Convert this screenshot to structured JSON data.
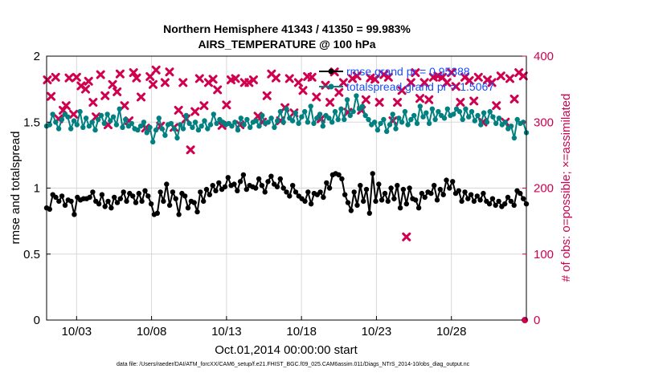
{
  "chart_data": {
    "type": "line",
    "title_line1": "Northern Hemisphere 41343 / 41350 = 99.983%",
    "title_line2": "AIRS_TEMPERATURE @ 100 hPa",
    "xlabel": "Oct.01,2014 00:00:00 start",
    "ylabel_left": "rmse and totalspread",
    "ylabel_right": "# of obs: o=possible; ×=assimilated",
    "x_ticks": [
      "10/03",
      "10/08",
      "10/13",
      "10/18",
      "10/23",
      "10/28"
    ],
    "x_tick_days": [
      3,
      8,
      13,
      18,
      23,
      28
    ],
    "y_left_ticks": [
      "0",
      "0.5",
      "1",
      "1.5",
      "2"
    ],
    "y_left_range": [
      0,
      2
    ],
    "y_right_ticks": [
      "0",
      "100",
      "200",
      "300",
      "400"
    ],
    "y_right_range": [
      0,
      400
    ],
    "x_range_days": [
      1,
      33
    ],
    "grid": true,
    "legend_position": "top-right",
    "colors": {
      "rmse": "#000000",
      "spread": "#008080",
      "obs": "#d0004f"
    },
    "series": [
      {
        "name": "rmse grand pr = 0.95388",
        "color": "#000000",
        "values": [
          0.85,
          0.84,
          0.95,
          0.93,
          0.9,
          0.94,
          0.87,
          0.91,
          0.9,
          0.8,
          0.93,
          0.91,
          0.92,
          0.92,
          0.93,
          0.97,
          0.9,
          0.88,
          0.95,
          0.86,
          0.9,
          0.85,
          0.93,
          0.89,
          0.92,
          0.97,
          0.9,
          0.96,
          0.94,
          0.89,
          0.96,
          0.9,
          0.98,
          0.94,
          0.88,
          0.8,
          0.81,
          0.97,
          0.9,
          1.03,
          0.87,
          0.97,
          0.92,
          0.8,
          0.96,
          0.94,
          0.85,
          0.9,
          0.89,
          0.82,
          0.97,
          0.9,
          0.99,
          0.95,
          1.02,
          0.98,
          1.04,
          0.99,
          1.01,
          1.08,
          1.02,
          1.03,
          0.98,
          1.05,
          1.1,
          0.99,
          1.02,
          1.01,
          1.0,
          1.07,
          1.02,
          0.97,
          1.05,
          1.09,
          1.03,
          1.01,
          1.07,
          1.0,
          0.97,
          0.94,
          1.02,
          0.97,
          0.94,
          0.92,
          0.9,
          0.97,
          0.88,
          0.96,
          0.95,
          0.97,
          0.93,
          1.04,
          1.0,
          1.1,
          1.11,
          1.1,
          1.07,
          0.95,
          0.89,
          0.83,
          0.97,
          0.87,
          1.02,
          0.9,
          0.99,
          0.81,
          1.11,
          0.9,
          1.03,
          0.91,
          0.96,
          0.9,
          1.0,
          0.92,
          1.02,
          0.85,
          0.99,
          0.88,
          1.0,
          0.92,
          0.91,
          0.85,
          0.96,
          0.93,
          0.97,
          0.96,
          1.02,
          0.91,
          0.99,
          0.95,
          1.06,
          1.0,
          1.05,
          0.96,
          0.98,
          0.9,
          0.97,
          0.92,
          0.95,
          0.9,
          0.94,
          0.91,
          0.96,
          0.9,
          0.88,
          0.92,
          0.87,
          0.9,
          0.86,
          0.88,
          0.93,
          0.9,
          0.87,
          0.98,
          0.96,
          0.92,
          0.88
        ]
      },
      {
        "name": "totalspread grand pr = 1.5067",
        "color": "#008080",
        "values": [
          1.47,
          1.48,
          1.56,
          1.5,
          1.45,
          1.52,
          1.56,
          1.54,
          1.45,
          1.51,
          1.48,
          1.58,
          1.46,
          1.53,
          1.47,
          1.5,
          1.44,
          1.52,
          1.55,
          1.49,
          1.56,
          1.51,
          1.54,
          1.48,
          1.6,
          1.46,
          1.52,
          1.47,
          1.49,
          1.45,
          1.44,
          1.47,
          1.5,
          1.42,
          1.46,
          1.35,
          1.44,
          1.53,
          1.45,
          1.4,
          1.48,
          1.49,
          1.45,
          1.38,
          1.48,
          1.45,
          1.55,
          1.49,
          1.46,
          1.5,
          1.44,
          1.47,
          1.51,
          1.45,
          1.48,
          1.56,
          1.49,
          1.52,
          1.5,
          1.48,
          1.49,
          1.47,
          1.5,
          1.44,
          1.53,
          1.48,
          1.52,
          1.46,
          1.5,
          1.51,
          1.47,
          1.55,
          1.49,
          1.5,
          1.53,
          1.46,
          1.51,
          1.58,
          1.5,
          1.6,
          1.53,
          1.51,
          1.57,
          1.49,
          1.54,
          1.58,
          1.5,
          1.62,
          1.49,
          1.53,
          1.56,
          1.47,
          1.55,
          1.53,
          1.5,
          1.58,
          1.52,
          1.6,
          1.52,
          1.67,
          1.55,
          1.58,
          1.7,
          1.6,
          1.62,
          1.55,
          1.52,
          1.48,
          1.5,
          1.44,
          1.49,
          1.52,
          1.43,
          1.48,
          1.56,
          1.45,
          1.53,
          1.5,
          1.58,
          1.48,
          1.52,
          1.55,
          1.49,
          1.62,
          1.54,
          1.57,
          1.49,
          1.6,
          1.52,
          1.58,
          1.55,
          1.53,
          1.6,
          1.55,
          1.56,
          1.6,
          1.58,
          1.52,
          1.6,
          1.54,
          1.58,
          1.51,
          1.55,
          1.48,
          1.57,
          1.5,
          1.58,
          1.54,
          1.49,
          1.53,
          1.48,
          1.5,
          1.45,
          1.47,
          1.38,
          1.52,
          1.49,
          1.5,
          1.42
        ]
      }
    ],
    "obs_possible": {
      "x_day": [
        32.9
      ],
      "values": [
        0
      ]
    },
    "obs_assimilated": {
      "x_day": [
        1.05,
        1.3,
        1.6,
        1.8,
        2.1,
        2.3,
        2.5,
        2.8,
        3.0,
        3.3,
        3.6,
        3.8,
        4.1,
        4.3,
        4.6,
        4.9,
        5.1,
        5.4,
        5.7,
        5.9,
        6.2,
        6.5,
        6.8,
        7.0,
        7.3,
        7.6,
        7.9,
        8.1,
        8.3,
        8.6,
        8.9,
        9.2,
        9.5,
        9.8,
        10.1,
        10.3,
        10.6,
        10.9,
        11.2,
        11.5,
        11.8,
        12.1,
        12.4,
        12.7,
        13.0,
        13.3,
        13.6,
        13.9,
        14.2,
        14.5,
        14.8,
        15.1,
        15.4,
        15.7,
        16.0,
        16.3,
        16.6,
        16.9,
        17.2,
        17.5,
        17.8,
        18.1,
        18.4,
        18.7,
        19.0,
        19.3,
        19.6,
        19.9,
        20.2,
        20.5,
        20.8,
        21.1,
        21.4,
        21.7,
        22.0,
        22.3,
        22.6,
        22.9,
        23.2,
        23.5,
        23.8,
        24.1,
        24.4,
        24.7,
        25.0,
        25.3,
        25.6,
        25.9,
        26.2,
        26.5,
        26.8,
        27.1,
        27.4,
        27.7,
        28.0,
        28.3,
        28.6,
        28.9,
        29.2,
        29.5,
        29.8,
        30.1,
        30.4,
        30.7,
        31.0,
        31.3,
        31.6,
        31.9,
        32.2,
        32.5,
        32.8
      ],
      "values": [
        364,
        339,
        368,
        305,
        318,
        325,
        367,
        312,
        368,
        355,
        350,
        362,
        330,
        308,
        372,
        340,
        296,
        357,
        346,
        373,
        325,
        302,
        375,
        367,
        338,
        291,
        369,
        357,
        379,
        294,
        360,
        376,
        292,
        318,
        360,
        305,
        258,
        316,
        366,
        325,
        360,
        365,
        349,
        295,
        326,
        364,
        366,
        296,
        360,
        360,
        364,
        309,
        300,
        340,
        373,
        367,
        302,
        322,
        366,
        314,
        360,
        348,
        369,
        368,
        338,
        305,
        356,
        330,
        376,
        345,
        360,
        315,
        366,
        370,
        318,
        334,
        367,
        365,
        330,
        372,
        368,
        302,
        330,
        348,
        126,
        360,
        375,
        336,
        360,
        334,
        368,
        370,
        368,
        360,
        375,
        354,
        330,
        368,
        363,
        332,
        368,
        300,
        364,
        360,
        325,
        370,
        300,
        366,
        335,
        375,
        370
      ]
    }
  }
}
